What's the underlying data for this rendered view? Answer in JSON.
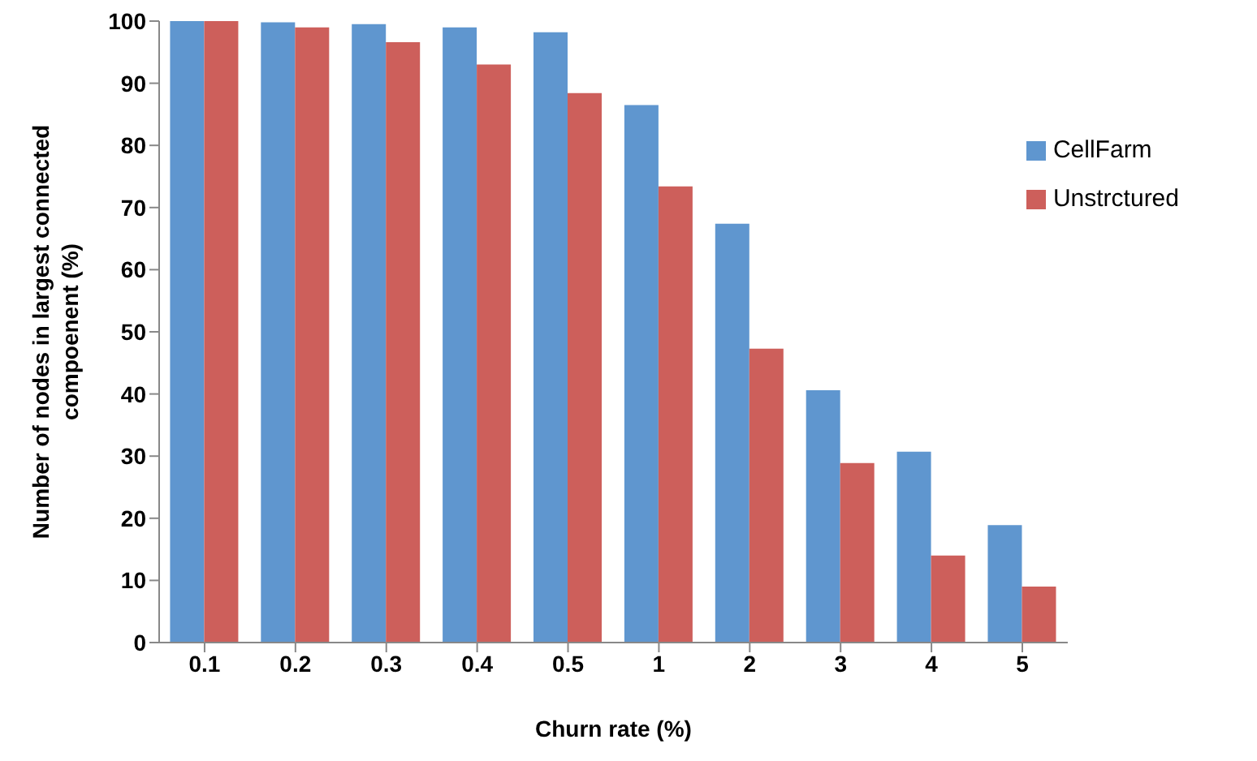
{
  "chart_data": {
    "type": "bar",
    "xlabel": "Churn rate (%)",
    "ylabel": "Number of nodes in largest connected compoenent (%)",
    "categories": [
      "0.1",
      "0.2",
      "0.3",
      "0.4",
      "0.5",
      "1",
      "2",
      "3",
      "4",
      "5"
    ],
    "series": [
      {
        "name": "CellFarm",
        "color": "#5f96cf",
        "values": [
          100,
          99.8,
          99.5,
          99,
          98.2,
          86.5,
          67.4,
          40.6,
          30.7,
          18.9
        ]
      },
      {
        "name": "Unstrctured",
        "color": "#cd5f5b",
        "values": [
          100,
          99,
          96.6,
          93,
          88.4,
          73.4,
          47.3,
          28.9,
          14,
          9
        ]
      }
    ],
    "ylim": [
      0,
      100
    ],
    "yticks": [
      0,
      10,
      20,
      30,
      40,
      50,
      60,
      70,
      80,
      90,
      100
    ],
    "grid": false,
    "legend": "top right"
  }
}
